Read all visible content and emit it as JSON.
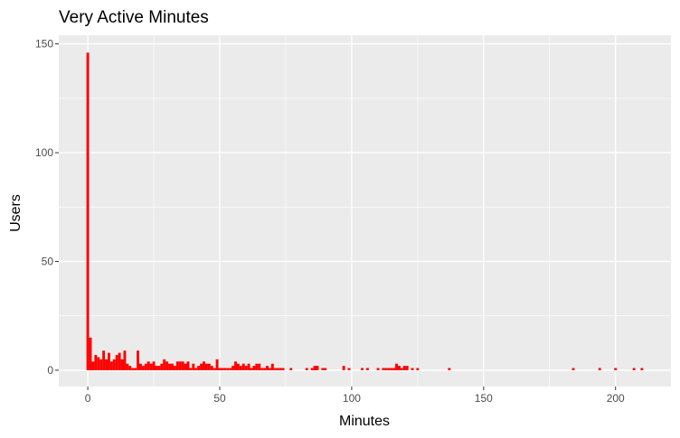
{
  "chart_data": {
    "type": "bar",
    "title": "Very Active Minutes",
    "xlabel": "Minutes",
    "ylabel": "Users",
    "xlim": [
      -11,
      221
    ],
    "ylim": [
      -7.5,
      154
    ],
    "x_ticks": [
      0,
      50,
      100,
      150,
      200
    ],
    "y_ticks": [
      0,
      50,
      100,
      150
    ],
    "grid": true,
    "legend": "none",
    "bar_color": "#ff0000",
    "panel_color": "#ebebeb",
    "x": [
      0,
      1,
      2,
      3,
      4,
      5,
      6,
      7,
      8,
      9,
      10,
      11,
      12,
      13,
      14,
      15,
      16,
      17,
      18,
      19,
      20,
      21,
      22,
      23,
      24,
      25,
      26,
      27,
      28,
      29,
      30,
      31,
      32,
      33,
      34,
      35,
      36,
      37,
      38,
      39,
      40,
      41,
      42,
      43,
      44,
      45,
      46,
      47,
      48,
      49,
      50,
      51,
      52,
      53,
      54,
      55,
      56,
      57,
      58,
      59,
      60,
      61,
      62,
      63,
      64,
      65,
      66,
      67,
      68,
      69,
      70,
      71,
      72,
      73,
      74,
      77,
      83,
      85,
      86,
      87,
      89,
      90,
      97,
      99,
      104,
      106,
      110,
      112,
      113,
      114,
      115,
      116,
      117,
      118,
      119,
      120,
      121,
      123,
      125,
      137,
      184,
      194,
      200,
      207,
      210
    ],
    "values": [
      146,
      15,
      4,
      7,
      6,
      5,
      9,
      5,
      8,
      4,
      5,
      7,
      8,
      5,
      9,
      3,
      2,
      1,
      1,
      9,
      3,
      2,
      3,
      4,
      3,
      4,
      2,
      2,
      3,
      5,
      4,
      3,
      3,
      2,
      4,
      4,
      4,
      3,
      4,
      1,
      3,
      1,
      2,
      3,
      4,
      3,
      3,
      2,
      1,
      5,
      1,
      1,
      1,
      1,
      1,
      2,
      4,
      3,
      2,
      3,
      2,
      3,
      1,
      2,
      3,
      3,
      1,
      1,
      2,
      1,
      3,
      1,
      1,
      1,
      1,
      1,
      1,
      1,
      2,
      2,
      1,
      1,
      2,
      1,
      1,
      1,
      1,
      1,
      1,
      1,
      1,
      1,
      3,
      2,
      1,
      2,
      2,
      1,
      1,
      1,
      1,
      1,
      1,
      1,
      1
    ]
  }
}
